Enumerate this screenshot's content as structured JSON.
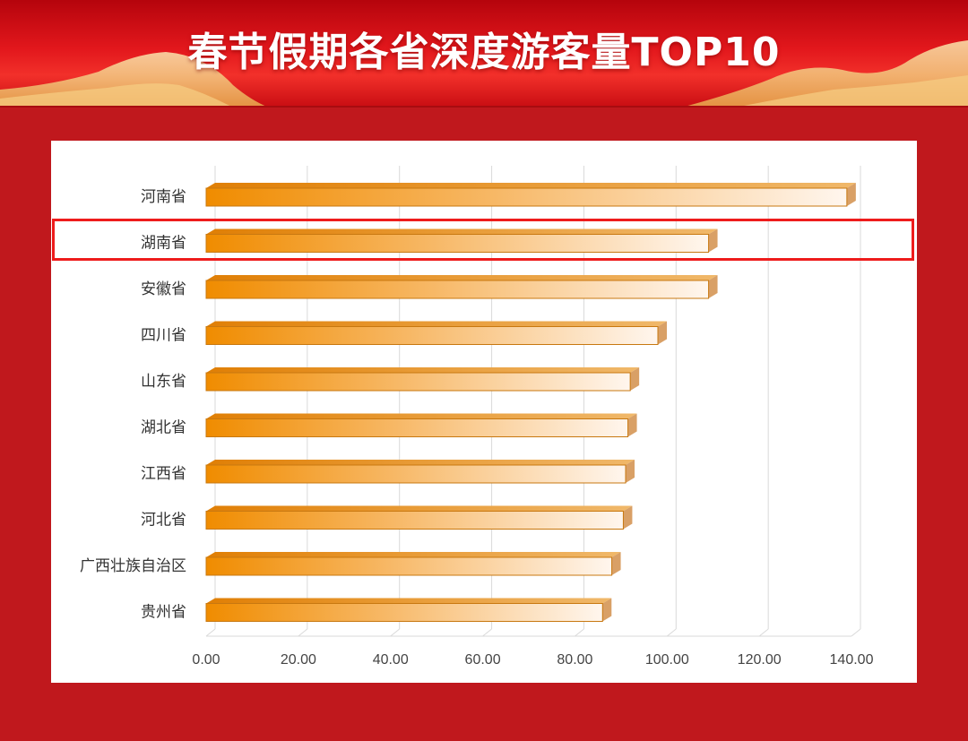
{
  "header": {
    "title": "春节假期各省深度游客量TOP10"
  },
  "colors": {
    "background": "#c0181d",
    "bar_dark": "#f08c00",
    "bar_light": "#fff6ee",
    "bar_edge": "#c87810",
    "highlight": "#ee1c1c",
    "grid": "#d9d9d9"
  },
  "highlight": {
    "category": "湖南省"
  },
  "chart_data": {
    "type": "bar",
    "orientation": "horizontal",
    "style": "3d",
    "categories": [
      "河南省",
      "湖南省",
      "安徽省",
      "四川省",
      "山东省",
      "湖北省",
      "江西省",
      "河北省",
      "广西壮族自治区",
      "贵州省"
    ],
    "values": [
      139,
      109,
      109,
      98,
      92,
      91.5,
      91,
      90.5,
      88,
      86
    ],
    "xlim": [
      0,
      140
    ],
    "xticks": [
      "0.00",
      "20.00",
      "40.00",
      "60.00",
      "80.00",
      "100.00",
      "120.00",
      "140.00"
    ],
    "grid": true,
    "title": "",
    "xlabel": "",
    "ylabel": ""
  }
}
